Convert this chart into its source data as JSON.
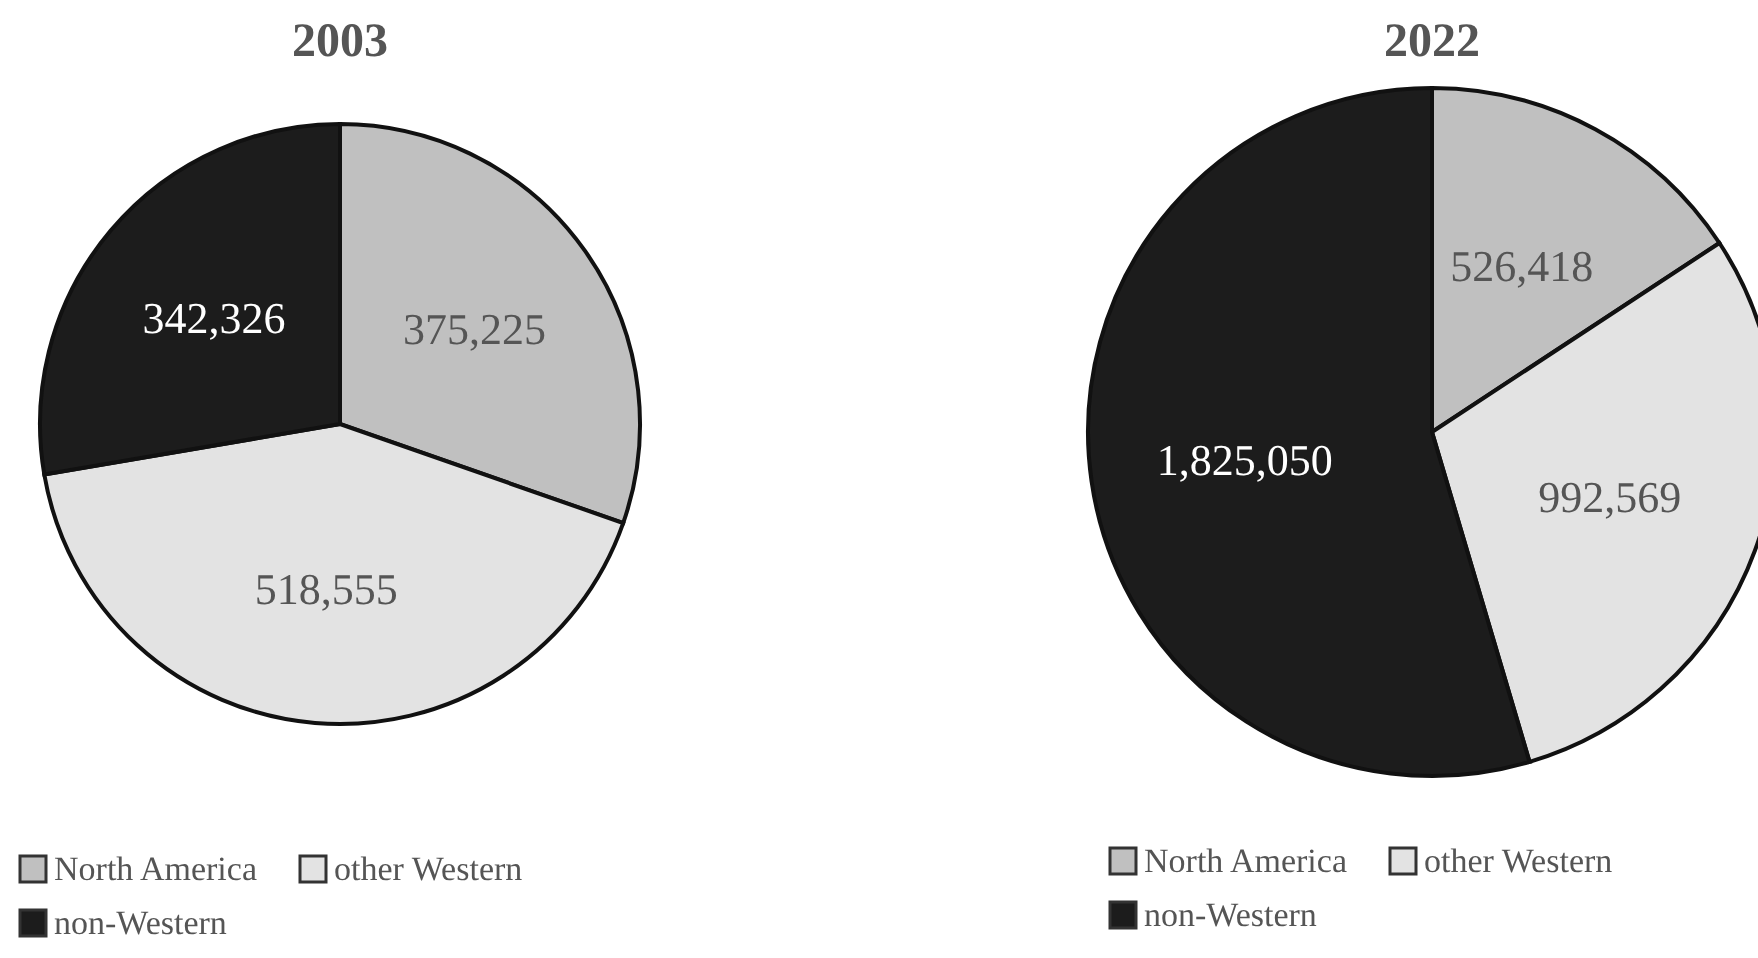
{
  "chart_data": [
    {
      "type": "pie",
      "title": "2003",
      "categories": [
        "North America",
        "other Western",
        "non-Western"
      ],
      "values": [
        375225,
        518555,
        342326
      ],
      "value_labels": [
        "375,225",
        "518,555",
        "342,326"
      ],
      "colors": [
        "#c0c0c0",
        "#e3e3e3",
        "#1c1c1c"
      ],
      "legend": "bottom"
    },
    {
      "type": "pie",
      "title": "2022",
      "categories": [
        "North America",
        "other Western",
        "non-Western"
      ],
      "values": [
        526418,
        992569,
        1825050
      ],
      "value_labels": [
        "526,418",
        "992,569",
        "1,825,050"
      ],
      "colors": [
        "#c0c0c0",
        "#e3e3e3",
        "#1c1c1c"
      ],
      "legend": "bottom"
    }
  ]
}
